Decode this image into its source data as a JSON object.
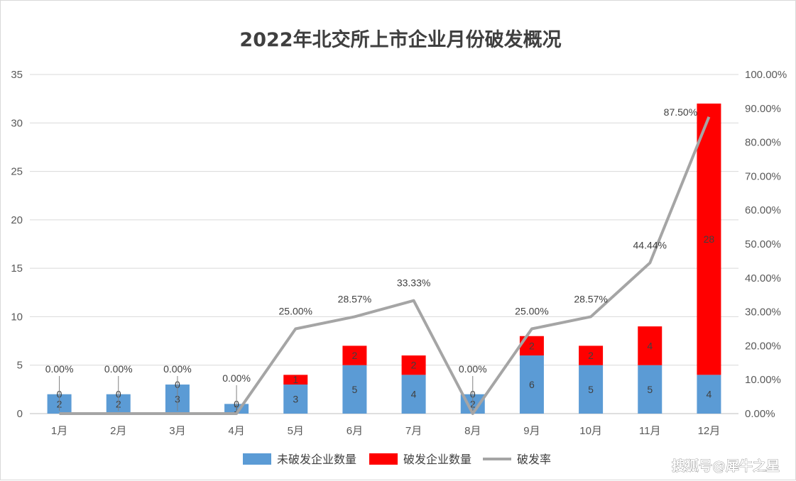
{
  "chart_data": {
    "type": "bar",
    "title": "2022年北交所上市企业月份破发概况",
    "categories": [
      "1月",
      "2月",
      "3月",
      "4月",
      "5月",
      "6月",
      "7月",
      "8月",
      "9月",
      "10月",
      "11月",
      "12月"
    ],
    "series": [
      {
        "name": "未破发企业数量",
        "type": "bar",
        "stack": true,
        "color": "#5b9bd5",
        "values": [
          2,
          2,
          3,
          1,
          3,
          5,
          4,
          2,
          6,
          5,
          5,
          4
        ]
      },
      {
        "name": "破发企业数量",
        "type": "bar",
        "stack": true,
        "color": "#ff0000",
        "values": [
          0,
          0,
          0,
          0,
          1,
          2,
          2,
          0,
          2,
          2,
          4,
          28
        ]
      },
      {
        "name": "破发率",
        "type": "line",
        "axis": "right",
        "color": "#a5a5a5",
        "values": [
          0,
          0,
          0,
          0,
          25.0,
          28.57,
          33.33,
          0,
          25.0,
          28.57,
          44.44,
          87.5
        ],
        "labels": [
          "0.00%",
          "0.00%",
          "0.00%",
          "0.00%",
          "25.00%",
          "28.57%",
          "33.33%",
          "0.00%",
          "25.00%",
          "28.57%",
          "44.44%",
          "87.50%"
        ]
      }
    ],
    "ylim": [
      0,
      35
    ],
    "yticks": [
      "0",
      "5",
      "10",
      "15",
      "20",
      "25",
      "30",
      "35"
    ],
    "y2lim": [
      0,
      100
    ],
    "y2ticks": [
      "0.00%",
      "10.00%",
      "20.00%",
      "30.00%",
      "40.00%",
      "50.00%",
      "60.00%",
      "70.00%",
      "80.00%",
      "90.00%",
      "100.00%"
    ],
    "grid": true,
    "legend_position": "bottom"
  },
  "watermark": "搜狐号@犀牛之星"
}
